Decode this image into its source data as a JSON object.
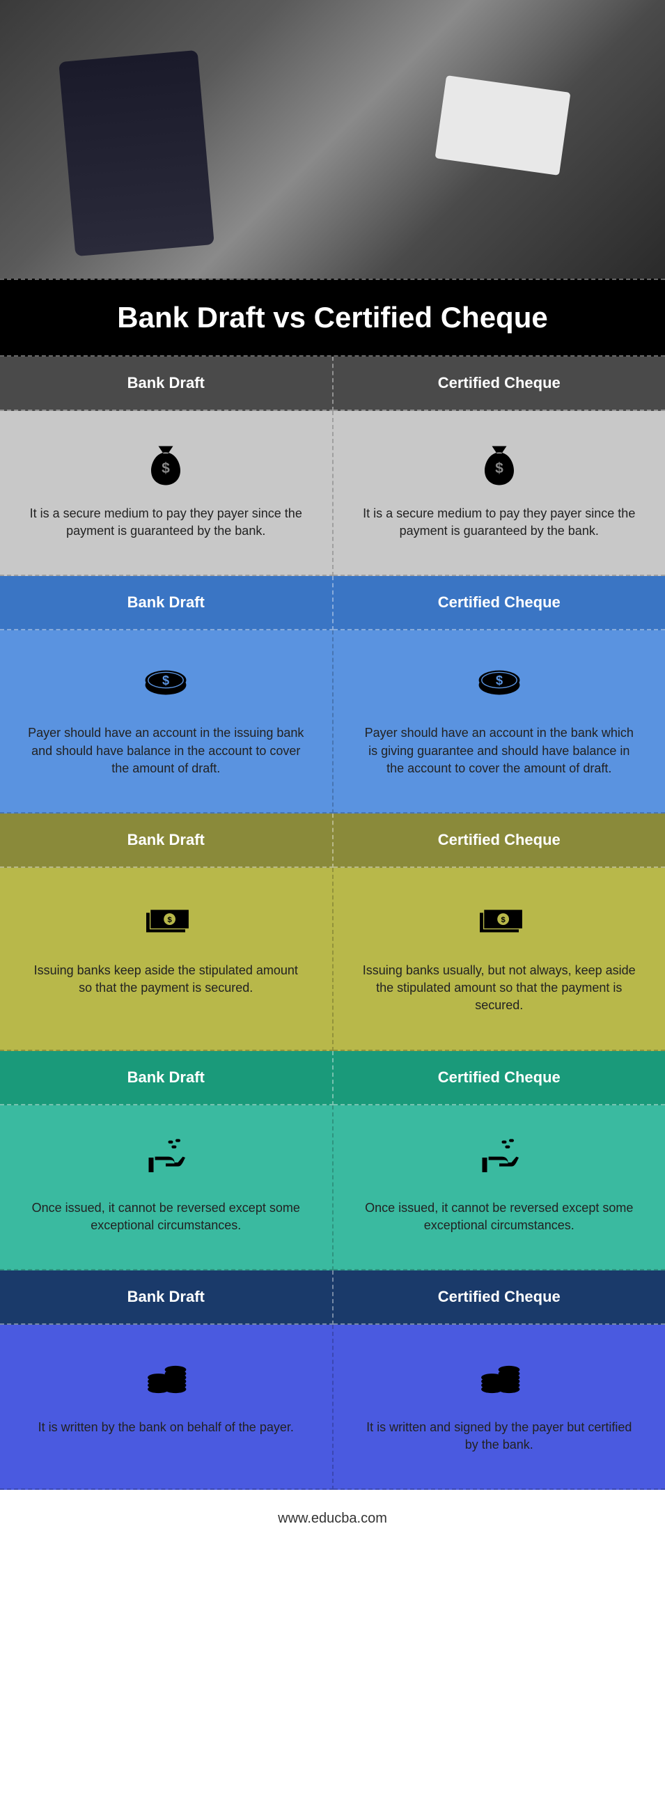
{
  "title": "Bank Draft vs Certified Cheque",
  "footer": "www.educba.com",
  "columns": {
    "left": "Bank Draft",
    "right": "Certified Cheque"
  },
  "sections": [
    {
      "header_bg": "hdr-gray",
      "content_bg": "bg-lightgray",
      "icon": "money-bag",
      "left": "It is a secure medium to pay they payer since the payment is guaranteed by the bank.",
      "right": "It is a secure medium to pay they payer since the payment is guaranteed by the bank."
    },
    {
      "header_bg": "hdr-blue1",
      "content_bg": "bg-blue1",
      "icon": "coin",
      "left": "Payer should have an account in the issuing bank and should have balance in the account to cover the amount of draft.",
      "right": "Payer should have an account in the bank which is giving guarantee and should have balance in the account to cover the amount of draft."
    },
    {
      "header_bg": "hdr-olive1",
      "content_bg": "bg-olive",
      "icon": "bill",
      "left": "Issuing banks keep aside the stipulated amount so that the payment is secured.",
      "right": "Issuing banks usually, but not always, keep aside the stipulated amount so that the payment is secured."
    },
    {
      "header_bg": "hdr-teal1",
      "content_bg": "bg-teal",
      "icon": "hand-coins",
      "left": "Once issued, it cannot be reversed except some exceptional circumstances.",
      "right": "Once issued, it cannot be reversed except some exceptional circumstances."
    },
    {
      "header_bg": "hdr-navy",
      "content_bg": "bg-blue2",
      "icon": "coin-stack",
      "left": "It is written by the bank on behalf of the payer.",
      "right": "It is written and signed by the payer but certified by the bank."
    }
  ],
  "icons": {
    "money-bag": "<svg viewBox='0 0 100 100'><path fill='#000' d='M35 15 L65 15 L55 30 L45 30 Z M50 28 C30 28 20 50 20 65 C20 85 35 95 50 95 C65 95 80 85 80 65 C80 50 70 28 50 28 Z'/><text x='50' y='70' font-size='30' fill='#888' text-anchor='middle' font-weight='bold'>$</text></svg>",
    "coin": "<svg viewBox='0 0 100 100'><ellipse cx='50' cy='55' rx='42' ry='20' fill='#000'/><ellipse cx='50' cy='45' rx='42' ry='20' fill='#000'/><ellipse cx='50' cy='45' rx='36' ry='16' fill='none' stroke='#5a93e0' stroke-width='2'/><text x='50' y='54' font-size='26' fill='#5a93e0' text-anchor='middle' font-weight='bold'>$</text></svg>",
    "bill": "<svg viewBox='0 0 100 100'><rect x='10' y='35' width='80' height='40' fill='#000'/><rect x='18' y='28' width='80' height='40' fill='#000' stroke='#b8b84a' stroke-width='2'/><circle cx='58' cy='48' r='12' fill='#b8b84a'/><text x='58' y='54' font-size='16' fill='#000' text-anchor='middle' font-weight='bold'>$</text></svg>",
    "hand-coins": "<svg viewBox='0 0 100 100'><rect x='55' y='15' width='10' height='6' rx='3' fill='#000'/><rect x='70' y='12' width='10' height='6' rx='3' fill='#000'/><rect x='62' y='25' width='10' height='6' rx='3' fill='#000'/><path fill='#000' d='M15 50 L15 80 L25 80 L25 50 Z M28 55 L60 55 C65 55 68 58 68 62 L50 62 L50 68 L75 68 C80 68 82 65 85 60 L90 50 L85 48 L75 60 L68 60 C68 52 62 48 55 48 L28 48 Z'/></svg>",
    "coin-stack": "<svg viewBox='0 0 100 100'><ellipse cx='35' cy='75' rx='22' ry='8' fill='#000'/><ellipse cx='35' cy='67' rx='22' ry='8' fill='#000'/><ellipse cx='35' cy='59' rx='22' ry='8' fill='#000'/><ellipse cx='35' cy='51' rx='22' ry='8' fill='#000'/><ellipse cx='70' cy='75' rx='22' ry='8' fill='#000'/><ellipse cx='70' cy='67' rx='22' ry='8' fill='#000'/><ellipse cx='70' cy='59' rx='22' ry='8' fill='#000'/><ellipse cx='70' cy='51' rx='22' ry='8' fill='#000'/><ellipse cx='70' cy='43' rx='22' ry='8' fill='#000'/><ellipse cx='70' cy='35' rx='22' ry='8' fill='#000'/></svg>"
  }
}
